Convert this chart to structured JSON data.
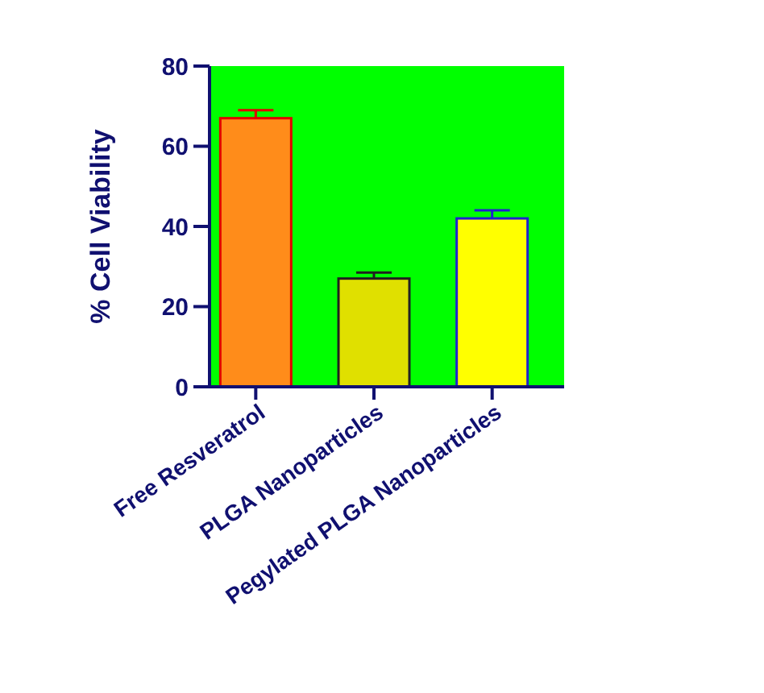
{
  "chart_data": {
    "type": "bar",
    "ylabel": "% Cell Viability",
    "categories": [
      "Free Resveratrol",
      "PLGA Nanoparticles",
      "Pegylated PLGA Nanoparticles"
    ],
    "values": [
      67,
      27,
      42
    ],
    "errors": [
      2,
      1.5,
      2
    ],
    "colors": [
      "#ff8c1a",
      "#e0e000",
      "#ffff00"
    ],
    "ylim": [
      0,
      80
    ],
    "yticks": [
      0,
      20,
      40,
      60,
      80
    ],
    "grid": false
  }
}
